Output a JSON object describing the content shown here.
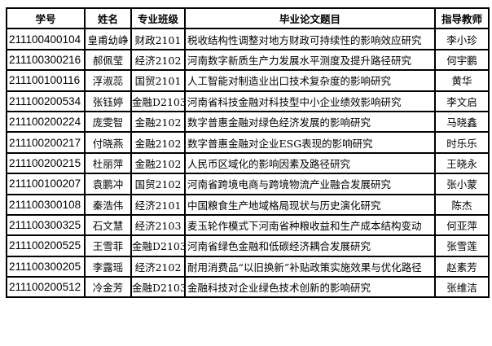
{
  "headers": [
    "学号",
    "姓名",
    "专业班级",
    "毕业论文题目",
    "指导教师"
  ],
  "rows": [
    [
      "211100400104",
      "皇甫幼峥",
      "财政2101",
      "税收结构性调整对地方财政可持续性的影响效应研究",
      "李小珍"
    ],
    [
      "211100300216",
      "郝佩莹",
      "经济2102",
      "河南数字新质生产力发展水平测度及提升路径研究",
      "何宇鹏"
    ],
    [
      "211100100116",
      "浮淑蕊",
      "国贸2101",
      "人工智能对制造业出口技术复杂度的影响研究",
      "黄华"
    ],
    [
      "211100200534",
      "张钰婷",
      "金融D2103",
      "河南省科技金融对科技型中小企业绩效影响研究",
      "李文启"
    ],
    [
      "211100200224",
      "庞雯智",
      "金融2102",
      "数字普惠金融对绿色经济发展的影响研究",
      "马晓鑫"
    ],
    [
      "211100200217",
      "付晓燕",
      "金融2102",
      "数字普惠金融对企业ESG表现的影响研究",
      "时乐乐"
    ],
    [
      "211100200215",
      "杜丽萍",
      "金融2102",
      "人民币区域化的影响因素及路径研究",
      "王晓永"
    ],
    [
      "211100100207",
      "袁鹏冲",
      "国贸2102",
      "河南省跨境电商与跨境物流产业融合发展研究",
      "张小蒙"
    ],
    [
      "211100300108",
      "秦浩伟",
      "经济2101",
      "中国粮食生产地域格局现状与历史演化研究",
      "陈杰"
    ],
    [
      "211100300325",
      "石文慧",
      "经济2103",
      "麦玉轮作模式下河南省种粮收益和生产成本结构变动",
      "何亚萍"
    ],
    [
      "211100200525",
      "王雪菲",
      "金融D2103",
      "河南省绿色金融和低碳经济耦合发展研究",
      "张雪莲"
    ],
    [
      "211100300205",
      "李露瑶",
      "经济2102",
      "耐用消费品“以旧换新”补贴政策实施效果与优化路径",
      "赵素芳"
    ],
    [
      "211100200512",
      "冷金芳",
      "金融D2103",
      "金融科技对企业绿色技术创新的影响研究",
      "张维洁"
    ]
  ]
}
